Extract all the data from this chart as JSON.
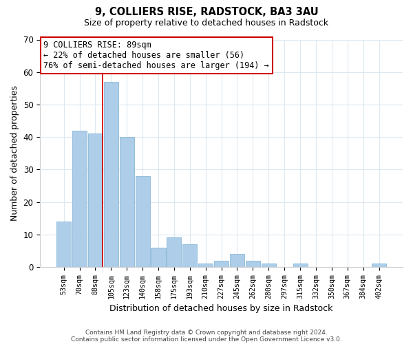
{
  "title": "9, COLLIERS RISE, RADSTOCK, BA3 3AU",
  "subtitle": "Size of property relative to detached houses in Radstock",
  "xlabel": "Distribution of detached houses by size in Radstock",
  "ylabel": "Number of detached properties",
  "bar_labels": [
    "53sqm",
    "70sqm",
    "88sqm",
    "105sqm",
    "123sqm",
    "140sqm",
    "158sqm",
    "175sqm",
    "193sqm",
    "210sqm",
    "227sqm",
    "245sqm",
    "262sqm",
    "280sqm",
    "297sqm",
    "315sqm",
    "332sqm",
    "350sqm",
    "367sqm",
    "384sqm",
    "402sqm"
  ],
  "bar_values": [
    14,
    42,
    41,
    57,
    40,
    28,
    6,
    9,
    7,
    1,
    2,
    4,
    2,
    1,
    0,
    1,
    0,
    0,
    0,
    0,
    1
  ],
  "bar_color": "#aecde8",
  "bar_edge_color": "#7ab0d4",
  "vline_color": "#cc0000",
  "vline_x_index": 2,
  "ylim": [
    0,
    70
  ],
  "yticks": [
    0,
    10,
    20,
    30,
    40,
    50,
    60,
    70
  ],
  "annotation_title": "9 COLLIERS RISE: 89sqm",
  "annotation_line1": "← 22% of detached houses are smaller (56)",
  "annotation_line2": "76% of semi-detached houses are larger (194) →",
  "annotation_box_color": "#ffffff",
  "annotation_box_edge": "#cc0000",
  "footer1": "Contains HM Land Registry data © Crown copyright and database right 2024.",
  "footer2": "Contains public sector information licensed under the Open Government Licence v3.0.",
  "background_color": "#ffffff",
  "grid_color": "#dce8f0"
}
